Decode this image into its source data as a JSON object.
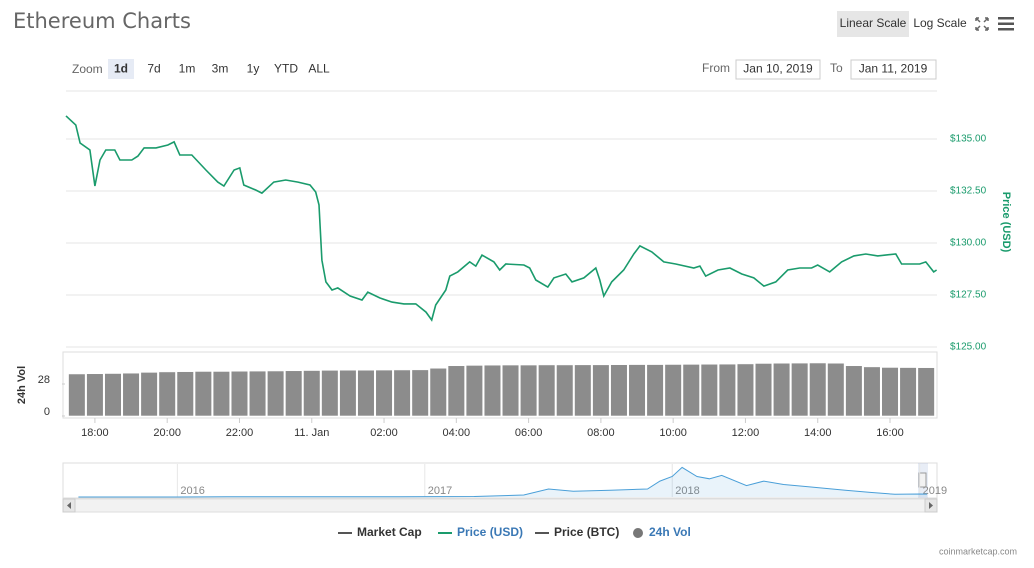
{
  "header": {
    "title": "Ethereum Charts",
    "buttons": [
      "Linear Scale",
      "Log Scale"
    ]
  },
  "controls": {
    "zoom_label": "Zoom",
    "zoom": [
      "1d",
      "7d",
      "1m",
      "3m",
      "1y",
      "YTD",
      "ALL"
    ],
    "from_label": "From",
    "from": "Jan 10, 2019",
    "to_label": "To",
    "to": "Jan 11, 2019"
  },
  "chart_data": [
    {
      "type": "line",
      "y_label": "Price (USD)",
      "grid": true,
      "x": [
        17.2,
        17.47,
        17.59,
        17.86,
        18.0,
        18.14,
        18.3,
        18.55,
        18.69,
        19.02,
        19.19,
        19.36,
        19.69,
        20.02,
        20.19,
        20.35,
        20.68,
        21.07,
        21.4,
        21.57,
        21.85,
        22.01,
        22.12,
        22.45,
        22.62,
        22.95,
        23.28,
        23.62,
        23.95,
        24.11,
        24.2,
        24.28,
        24.39,
        24.56,
        24.72,
        25.06,
        25.39,
        25.55,
        25.88,
        26.22,
        26.55,
        26.88,
        27.16,
        27.32,
        27.43,
        27.71,
        27.82,
        28.04,
        28.37,
        28.54,
        28.71,
        29.04,
        29.2,
        29.37,
        29.87,
        30.03,
        30.2,
        30.53,
        30.7,
        31.03,
        31.2,
        31.53,
        31.86,
        31.97,
        32.08,
        32.3,
        32.63,
        32.91,
        33.08,
        33.41,
        33.74,
        34.07,
        34.57,
        34.74,
        34.9,
        35.24,
        35.57,
        35.9,
        36.23,
        36.51,
        36.84,
        37.17,
        37.5,
        37.83,
        38.0,
        38.33,
        38.66,
        39.0,
        39.33,
        39.66,
        40.16,
        40.32,
        40.82,
        40.99,
        41.21,
        41.29
      ],
      "series": [
        {
          "name": "Price (USD)",
          "color": "#1a9b6c",
          "values": [
            136.11,
            135.67,
            134.81,
            134.47,
            132.74,
            133.99,
            134.47,
            134.47,
            133.99,
            133.99,
            134.18,
            134.57,
            134.57,
            134.71,
            134.86,
            134.23,
            134.23,
            133.51,
            132.93,
            132.74,
            133.51,
            133.61,
            132.79,
            132.55,
            132.4,
            132.93,
            133.03,
            132.93,
            132.79,
            132.45,
            131.83,
            129.18,
            128.13,
            127.74,
            127.84,
            127.45,
            127.26,
            127.64,
            127.36,
            127.16,
            127.07,
            127.07,
            126.68,
            126.3,
            127.02,
            127.74,
            128.41,
            128.61,
            129.09,
            128.89,
            129.42,
            129.09,
            128.7,
            128.99,
            128.94,
            128.8,
            128.22,
            127.88,
            128.32,
            128.51,
            128.13,
            128.32,
            128.8,
            128.22,
            127.45,
            128.13,
            128.7,
            129.47,
            129.86,
            129.57,
            129.09,
            128.99,
            128.8,
            128.89,
            128.41,
            128.7,
            128.8,
            128.51,
            128.32,
            127.93,
            128.13,
            128.7,
            128.8,
            128.8,
            128.94,
            128.61,
            129.09,
            129.38,
            129.47,
            129.38,
            129.47,
            128.99,
            128.99,
            129.09,
            128.61,
            128.7
          ]
        }
      ],
      "xlim": [
        17.2,
        41.3
      ],
      "xticks": [
        {
          "value": 18,
          "label": "18:00"
        },
        {
          "value": 20,
          "label": "20:00"
        },
        {
          "value": 22,
          "label": "22:00"
        },
        {
          "value": 24,
          "label": "11. Jan"
        },
        {
          "value": 26,
          "label": "02:00"
        },
        {
          "value": 28,
          "label": "04:00"
        },
        {
          "value": 30,
          "label": "06:00"
        },
        {
          "value": 32,
          "label": "08:00"
        },
        {
          "value": 34,
          "label": "10:00"
        },
        {
          "value": 36,
          "label": "12:00"
        },
        {
          "value": 38,
          "label": "14:00"
        },
        {
          "value": 40,
          "label": "16:00"
        }
      ],
      "ylim": [
        125,
        137.5
      ],
      "yticks": [
        {
          "value": 125,
          "label": "$125.00"
        },
        {
          "value": 127.5,
          "label": "$127.50"
        },
        {
          "value": 130,
          "label": "$130.00"
        },
        {
          "value": 132.5,
          "label": "$132.50"
        },
        {
          "value": 135,
          "label": "$135.00"
        }
      ]
    },
    {
      "type": "bar",
      "y_label": "24h Vol",
      "x": [
        17.5,
        18,
        18.5,
        19,
        19.5,
        20,
        20.5,
        21,
        21.5,
        22,
        22.5,
        23,
        23.5,
        24,
        24.5,
        25,
        25.5,
        26,
        26.5,
        27,
        27.5,
        28,
        28.5,
        29,
        29.5,
        30,
        30.5,
        31,
        31.5,
        32,
        32.5,
        33,
        33.5,
        34,
        34.5,
        35,
        35.5,
        36,
        36.5,
        37,
        37.5,
        38,
        38.5,
        39,
        39.5,
        40,
        40.5,
        41
      ],
      "series": [
        {
          "name": "24h Vol",
          "color": "#8c8c8c",
          "values": [
            36.8,
            37.0,
            37.2,
            37.5,
            38.2,
            38.6,
            38.8,
            39.0,
            39.0,
            39.2,
            39.3,
            39.4,
            39.6,
            39.8,
            40.0,
            40.1,
            40.1,
            40.2,
            40.3,
            40.4,
            41.8,
            44.0,
            44.3,
            44.5,
            44.6,
            44.6,
            44.7,
            44.7,
            44.8,
            44.8,
            44.9,
            45.0,
            45.0,
            45.1,
            45.2,
            45.3,
            45.4,
            45.6,
            46.0,
            46.2,
            46.3,
            46.4,
            46.2,
            44.0,
            43.0,
            42.5,
            42.4,
            42.3
          ]
        }
      ],
      "xlim": [
        17.2,
        41.3
      ],
      "ylim": [
        0,
        56
      ],
      "yticks": [
        0,
        28
      ]
    },
    {
      "type": "area",
      "x": [
        2015.6,
        2016.0,
        2016.2,
        2016.5,
        2016.9,
        2017.2,
        2017.4,
        2017.5,
        2017.6,
        2017.75,
        2017.9,
        2017.95,
        2018.0,
        2018.04,
        2018.1,
        2018.15,
        2018.2,
        2018.3,
        2018.37,
        2018.45,
        2018.55,
        2018.7,
        2018.8,
        2018.9,
        2019.0,
        2019.03
      ],
      "series": [
        {
          "name": "Price (USD)",
          "color": "#4a9fd8",
          "values": [
            1,
            1,
            10,
            14,
            8,
            20,
            90,
            350,
            250,
            300,
            350,
            700,
            900,
            1300,
            900,
            800,
            950,
            500,
            700,
            550,
            450,
            300,
            200,
            120,
            130,
            128
          ]
        }
      ],
      "xlim": [
        2015.55,
        2019.07
      ],
      "xticks": [
        2016,
        2017,
        2018,
        2019
      ],
      "ylim": [
        0,
        1450
      ]
    }
  ],
  "legend": [
    {
      "name": "Market Cap",
      "color": "#555555"
    },
    {
      "name": "Price (USD)",
      "color": "#1a9b6c"
    },
    {
      "name": "Price (BTC)",
      "color": "#555555"
    },
    {
      "name": "24h Vol",
      "color": "#777777"
    }
  ],
  "credits": "coinmarketcap.com"
}
